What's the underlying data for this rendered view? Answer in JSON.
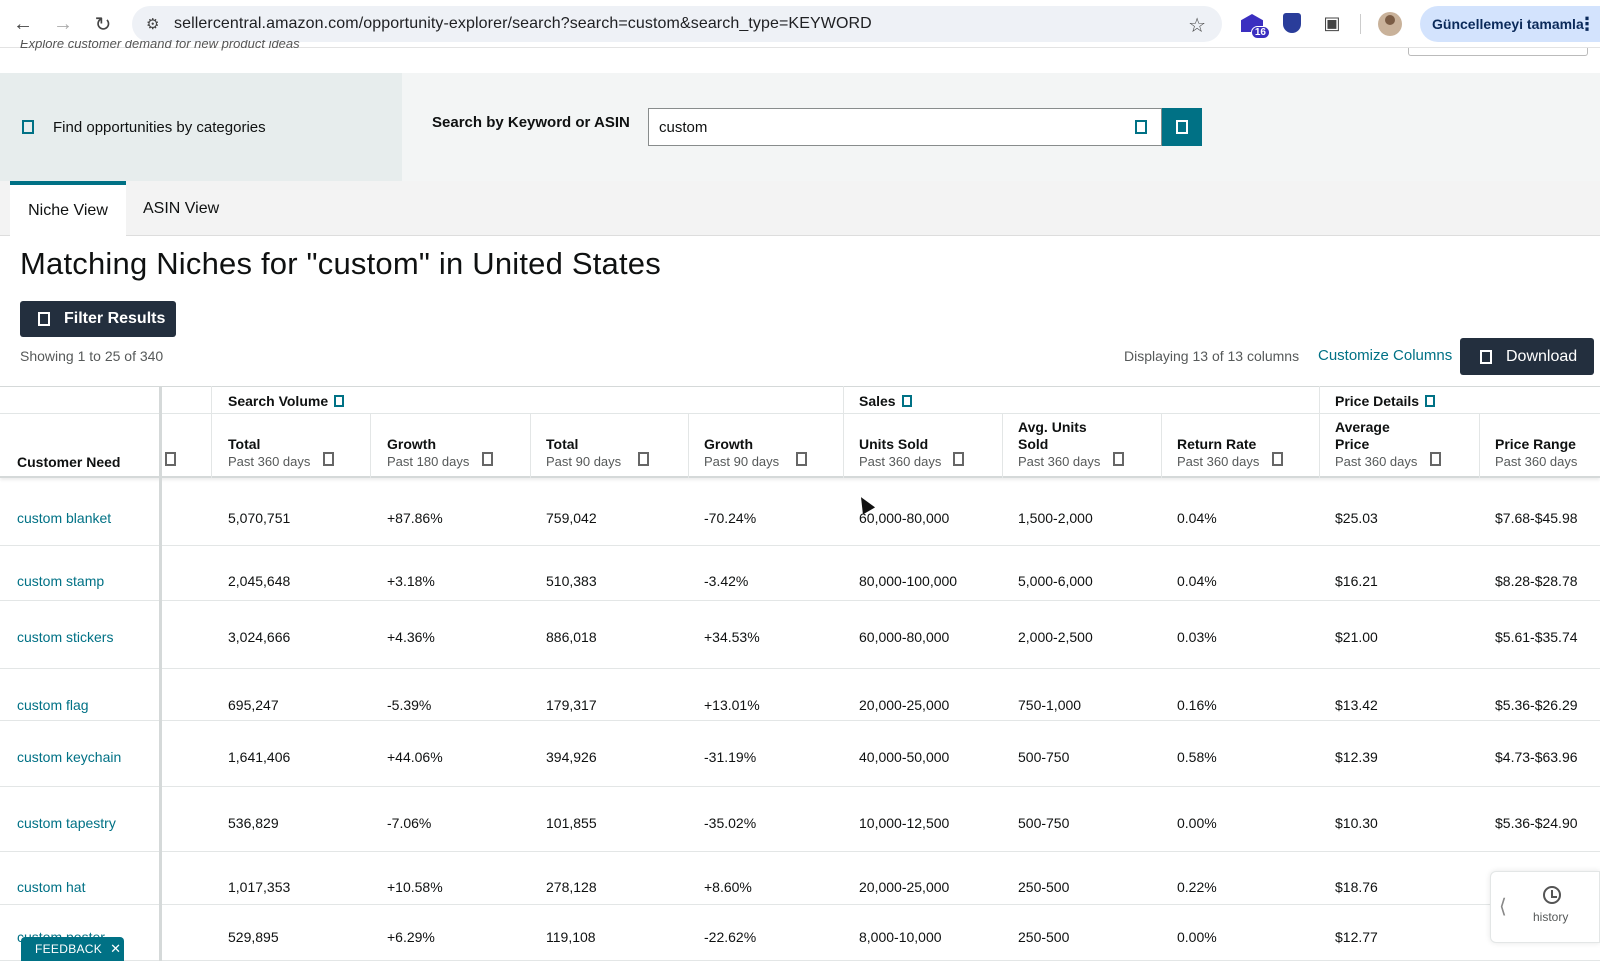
{
  "browser": {
    "url": "sellercentral.amazon.com/opportunity-explorer/search?search=custom&search_type=KEYWORD",
    "extension_badge": "16",
    "update_label": "Güncellemeyi tamamla"
  },
  "page": {
    "subtitle": "Explore customer demand for new product ideas",
    "categories_label": "Find opportunities by categories",
    "search_label": "Search by Keyword or ASIN",
    "search_value": "custom",
    "tabs": [
      "Niche View",
      "ASIN View"
    ],
    "title": "Matching Niches for \"custom\" in United States",
    "filter_label": "Filter Results",
    "showing": "Showing 1 to 25 of 340",
    "displaying": "Displaying 13 of 13 columns",
    "customize": "Customize Columns",
    "download": "Download",
    "feedback": "FEEDBACK",
    "history": "history"
  },
  "table": {
    "groups": [
      "Search Volume",
      "Sales",
      "Price Details"
    ],
    "customer_need_header": "Customer Need",
    "columns": [
      {
        "h1": "Total",
        "h2": "Past 360 days"
      },
      {
        "h1": "Growth",
        "h2": "Past 180 days"
      },
      {
        "h1": "Total",
        "h2": "Past 90 days"
      },
      {
        "h1": "Growth",
        "h2": "Past 90 days"
      },
      {
        "h1": "Units Sold",
        "h2": "Past 360 days"
      },
      {
        "h1": "Avg. Units Sold",
        "h2": "Past 360 days"
      },
      {
        "h1": "Return Rate",
        "h2": "Past 360 days"
      },
      {
        "h1": "Average Price",
        "h2": "Past 360 days"
      },
      {
        "h1": "Price Range",
        "h2": "Past 360 days"
      }
    ],
    "rows": [
      {
        "need": "custom blanket",
        "c": [
          "5,070,751",
          "+87.86%",
          "759,042",
          "-70.24%",
          "60,000-80,000",
          "1,500-2,000",
          "0.04%",
          "$25.03",
          "$7.68-$45.98"
        ]
      },
      {
        "need": "custom stamp",
        "c": [
          "2,045,648",
          "+3.18%",
          "510,383",
          "-3.42%",
          "80,000-100,000",
          "5,000-6,000",
          "0.04%",
          "$16.21",
          "$8.28-$28.78"
        ]
      },
      {
        "need": "custom stickers",
        "c": [
          "3,024,666",
          "+4.36%",
          "886,018",
          "+34.53%",
          "60,000-80,000",
          "2,000-2,500",
          "0.03%",
          "$21.00",
          "$5.61-$35.74"
        ]
      },
      {
        "need": "custom flag",
        "c": [
          "695,247",
          "-5.39%",
          "179,317",
          "+13.01%",
          "20,000-25,000",
          "750-1,000",
          "0.16%",
          "$13.42",
          "$5.36-$26.29"
        ]
      },
      {
        "need": "custom keychain",
        "c": [
          "1,641,406",
          "+44.06%",
          "394,926",
          "-31.19%",
          "40,000-50,000",
          "500-750",
          "0.58%",
          "$12.39",
          "$4.73-$63.96"
        ]
      },
      {
        "need": "custom tapestry",
        "c": [
          "536,829",
          "-7.06%",
          "101,855",
          "-35.02%",
          "10,000-12,500",
          "500-750",
          "0.00%",
          "$10.30",
          "$5.36-$24.90"
        ]
      },
      {
        "need": "custom hat",
        "c": [
          "1,017,353",
          "+10.58%",
          "278,128",
          "+8.60%",
          "20,000-25,000",
          "250-500",
          "0.22%",
          "$18.76",
          ""
        ]
      },
      {
        "need": "custom poster",
        "c": [
          "529,895",
          "+6.29%",
          "119,108",
          "-22.62%",
          "8,000-10,000",
          "250-500",
          "0.00%",
          "$12.77",
          ""
        ]
      }
    ]
  }
}
